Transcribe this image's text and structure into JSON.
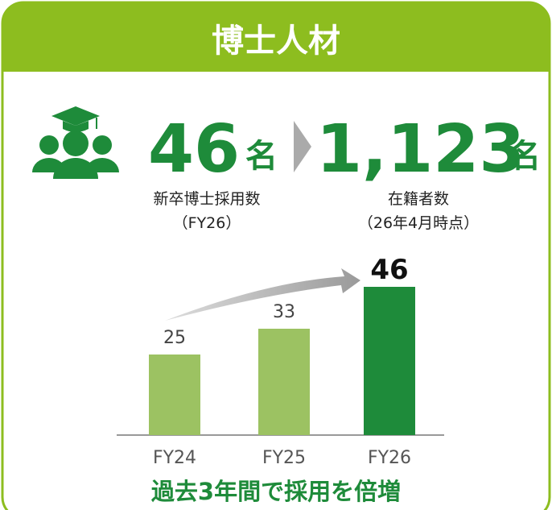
{
  "header": {
    "title": "博士人材"
  },
  "stats": [
    {
      "number": "46",
      "unit": "名",
      "label": "新卒博士採用数",
      "sublabel": "（FY26）"
    },
    {
      "number": "1,123",
      "unit": "名",
      "label": "在籍者数",
      "sublabel": "（26年4月時点）"
    }
  ],
  "chart_data": {
    "type": "bar",
    "categories": [
      "FY24",
      "FY25",
      "FY26"
    ],
    "values": [
      25,
      33,
      46
    ],
    "colors": [
      "#9cc262",
      "#9cc262",
      "#1e8b3a"
    ]
  },
  "footer": {
    "text": "過去3年間で採用を倍増"
  }
}
